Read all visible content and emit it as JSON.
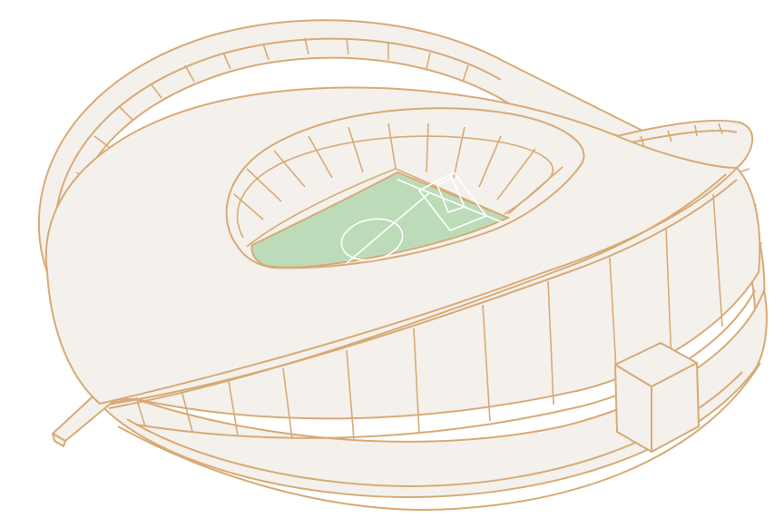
{
  "illustration": {
    "subject": "stadium-illustration",
    "colors": {
      "stroke": "#d8aa76",
      "fill": "#f4f1ec",
      "pitch": "#bcdcb9",
      "pitch_lines": "#ffffff"
    }
  }
}
